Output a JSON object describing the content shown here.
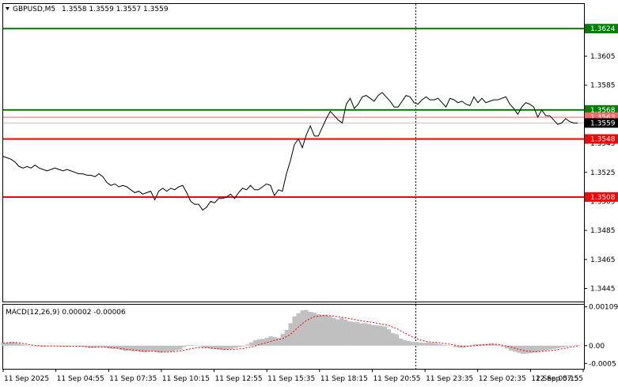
{
  "header": {
    "symbol": "GBPUSD,M5",
    "ohlc": "1.3558 1.3559 1.3557 1.3559",
    "macd_label": "MACD(12,26,9) 0.00002 -0.00006"
  },
  "colors": {
    "background": "#ffffff",
    "price_line": "#000000",
    "green_level": "#008000",
    "red_level": "#ff0000",
    "macd_hist": "#c0c0c0",
    "macd_signal": "#ff0000",
    "axis": "#000000"
  },
  "chart_data": [
    {
      "type": "line",
      "title": "GBPUSD,M5",
      "ylim": [
        1.3436,
        1.3641
      ],
      "yticks": [
        "1.3605",
        "1.3585",
        "1.3545",
        "1.3525",
        "1.3505",
        "1.3485",
        "1.3465",
        "1.3445"
      ],
      "xticks": [
        "11 Sep 2025",
        "11 Sep 04:55",
        "11 Sep 07:35",
        "11 Sep 10:15",
        "11 Sep 12:55",
        "11 Sep 15:35",
        "11 Sep 18:15",
        "11 Sep 20:55",
        "11 Sep 23:35",
        "12 Sep 02:35",
        "12 Sep 05:15",
        "12 Sep 07:55"
      ],
      "levels": [
        {
          "value": 1.3624,
          "label": "1.3624",
          "color": "#008000"
        },
        {
          "value": 1.3568,
          "label": "1.3568",
          "color": "#008000"
        },
        {
          "value": 1.3563,
          "label": "1.3563",
          "color": "#ff6666"
        },
        {
          "value": 1.3548,
          "label": "1.3548",
          "color": "#ff0000"
        },
        {
          "value": 1.3508,
          "label": "1.3508",
          "color": "#ff0000"
        }
      ],
      "current_price": "1.3559",
      "series": [
        {
          "values": [
            1.3536,
            1.3535,
            1.3534,
            1.3532,
            1.3529,
            1.3528,
            1.3529,
            1.3528,
            1.353,
            1.3528,
            1.3527,
            1.3526,
            1.3527,
            1.3528,
            1.3527,
            1.3526,
            1.3527,
            1.3526,
            1.3525,
            1.3524,
            1.3524,
            1.3523,
            1.3523,
            1.3522,
            1.3524,
            1.3522,
            1.3518,
            1.3516,
            1.3517,
            1.3515,
            1.3516,
            1.3515,
            1.3513,
            1.3511,
            1.3512,
            1.351,
            1.3511,
            1.3512,
            1.3506,
            1.3512,
            1.3514,
            1.3512,
            1.3514,
            1.3513,
            1.3515,
            1.3516,
            1.3511,
            1.3505,
            1.3503,
            1.3503,
            1.3499,
            1.3501,
            1.3505,
            1.3504,
            1.3507,
            1.3507,
            1.3508,
            1.351,
            1.3507,
            1.3511,
            1.3514,
            1.3513,
            1.3516,
            1.3513,
            1.3513,
            1.3515,
            1.3517,
            1.3516,
            1.3509,
            1.3513,
            1.3512,
            1.3524,
            1.3533,
            1.3544,
            1.3548,
            1.3542,
            1.3551,
            1.3557,
            1.355,
            1.355,
            1.3556,
            1.3562,
            1.3567,
            1.3564,
            1.3561,
            1.3559,
            1.3572,
            1.3576,
            1.3569,
            1.3572,
            1.3577,
            1.3578,
            1.3576,
            1.3574,
            1.3578,
            1.358,
            1.3577,
            1.3574,
            1.357,
            1.357,
            1.3574,
            1.3578,
            1.3577,
            1.3573,
            1.3572,
            1.3575,
            1.3577,
            1.3575,
            1.3575,
            1.3576,
            1.3573,
            1.357,
            1.3576,
            1.3575,
            1.3573,
            1.3574,
            1.3572,
            1.3571,
            1.3577,
            1.3573,
            1.3576,
            1.3573,
            1.3574,
            1.3575,
            1.3575,
            1.3576,
            1.3577,
            1.3572,
            1.3569,
            1.3565,
            1.357,
            1.3573,
            1.3572,
            1.357,
            1.3563,
            1.3568,
            1.3564,
            1.3564,
            1.3561,
            1.3558,
            1.3559,
            1.3562,
            1.356,
            1.3559,
            1.3559
          ]
        }
      ]
    },
    {
      "type": "bar",
      "title": "MACD(12,26,9) 0.00002 -0.00006",
      "ylim": [
        -0.00065,
        0.00115
      ],
      "yticks": [
        "0.00109",
        "0.00",
        "-0.0005"
      ],
      "series": [
        {
          "name": "MACD",
          "values": [
            8e-05,
            9e-05,
            0.00011,
            9e-05,
            6e-05,
            3e-05,
            1e-05,
            -1e-05,
            -1e-05,
            -2e-05,
            -3e-05,
            -2e-05,
            -1e-05,
            -1e-05,
            -2e-05,
            -2e-05,
            -3e-05,
            -2e-05,
            -1e-05,
            -2e-05,
            -3e-05,
            -4e-05,
            -6e-05,
            -6e-05,
            -4e-05,
            -3e-05,
            -5e-05,
            -8e-05,
            -9e-05,
            -9e-05,
            -0.00012,
            -0.00015,
            -0.00014,
            -0.00016,
            -0.00016,
            -0.00018,
            -0.00019,
            -0.00017,
            -0.00015,
            -0.00019,
            -0.0002,
            -0.00018,
            -0.00017,
            -0.00016,
            -0.00013,
            -0.00011,
            -4e-05,
            2e-05,
            2e-05,
            1e-05,
            -2e-05,
            -5e-05,
            -7e-05,
            -9e-05,
            -0.0001,
            -0.00011,
            -0.00013,
            -0.00012,
            -9e-05,
            -6e-05,
            -4e-05,
            -2e-05,
            3e-05,
            9e-05,
            0.00015,
            0.00018,
            0.00019,
            0.00022,
            0.00026,
            0.00024,
            0.00022,
            0.00033,
            0.00044,
            0.00063,
            0.00082,
            0.00091,
            0.00099,
            0.001,
            0.00095,
            0.00093,
            0.00088,
            0.00087,
            0.00087,
            0.00083,
            0.00078,
            0.00074,
            0.00078,
            0.00073,
            0.00068,
            0.00067,
            0.00066,
            0.00063,
            0.00063,
            0.00061,
            0.00058,
            0.00057,
            0.00056,
            0.00054,
            0.00046,
            0.00035,
            0.00032,
            0.0002,
            0.00016,
            0.00013,
            0.00011,
            0.0001,
            9e-05,
            8e-05,
            9e-05,
            8e-05,
            7e-05,
            4e-05,
            2e-05,
            1e-05,
            -1e-05,
            -4e-05,
            -6e-05,
            -6e-05,
            -2e-05,
            2e-05,
            4e-05,
            4e-05,
            4e-05,
            5e-05,
            6e-05,
            4e-05,
            2e-05,
            -3e-05,
            -8e-05,
            -0.00014,
            -0.00017,
            -0.0002,
            -0.00023,
            -0.00022,
            -0.00021,
            -0.00019,
            -0.00017,
            -0.00015,
            -0.00013,
            -0.00011,
            -9e-05,
            -7e-05,
            -5e-05,
            -3e-05,
            -2e-05,
            1e-05,
            2e-05
          ]
        },
        {
          "name": "Signal",
          "values": [
            7e-05,
            8e-05,
            9e-05,
            9e-05,
            8e-05,
            6e-05,
            4e-05,
            2e-05,
            1e-05,
            0.0,
            -1e-05,
            -1e-05,
            -1e-05,
            -1e-05,
            -1e-05,
            -2e-05,
            -2e-05,
            -2e-05,
            -2e-05,
            -2e-05,
            -2e-05,
            -3e-05,
            -4e-05,
            -4e-05,
            -4e-05,
            -4e-05,
            -4e-05,
            -5e-05,
            -6e-05,
            -7e-05,
            -8e-05,
            -0.0001,
            -0.00011,
            -0.00012,
            -0.00013,
            -0.00014,
            -0.00015,
            -0.00016,
            -0.00016,
            -0.00016,
            -0.00017,
            -0.00018,
            -0.00018,
            -0.00017,
            -0.00016,
            -0.00015,
            -0.00013,
            -0.0001,
            -8e-05,
            -6e-05,
            -6e-05,
            -6e-05,
            -6e-05,
            -7e-05,
            -8e-05,
            -9e-05,
            -0.0001,
            -0.00011,
            -0.00011,
            -0.0001,
            -9e-05,
            -8e-05,
            -6e-05,
            -4e-05,
            -1e-05,
            3e-05,
            6e-05,
            9e-05,
            0.00012,
            0.00015,
            0.00017,
            0.0002,
            0.00025,
            0.00032,
            0.00042,
            0.00052,
            0.00061,
            0.0007,
            0.00076,
            0.00081,
            0.00083,
            0.00084,
            0.00084,
            0.00084,
            0.00083,
            0.00081,
            0.0008,
            0.00078,
            0.00076,
            0.00074,
            0.00072,
            0.0007,
            0.00068,
            0.00067,
            0.00065,
            0.00063,
            0.00061,
            0.00059,
            0.00057,
            0.00052,
            0.00048,
            0.00042,
            0.00036,
            0.0003,
            0.00025,
            0.0002,
            0.00016,
            0.00013,
            0.00011,
            0.0001,
            9e-05,
            8e-05,
            6e-05,
            5e-05,
            3e-05,
            1e-05,
            -1e-05,
            -2e-05,
            -2e-05,
            -1e-05,
            0.0,
            1e-05,
            2e-05,
            3e-05,
            4e-05,
            4e-05,
            3e-05,
            1e-05,
            -1e-05,
            -4e-05,
            -7e-05,
            -0.0001,
            -0.00013,
            -0.00015,
            -0.00016,
            -0.00017,
            -0.00017,
            -0.00016,
            -0.00015,
            -0.00014,
            -0.00013,
            -0.00011,
            -9e-05,
            -7e-05,
            -5e-05,
            -3e-05,
            -1e-05
          ]
        }
      ]
    }
  ]
}
